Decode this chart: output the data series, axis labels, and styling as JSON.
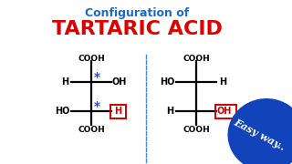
{
  "bg_color": "#ffffff",
  "title1": "Configuration of",
  "title1_color": "#1a6acc",
  "title2": "TARTARIC ACID",
  "title2_color": "#dd0000",
  "separator_color": "#4488ee",
  "asterisk_color": "#2255cc",
  "box_color": "#cc0000",
  "struct_line_color": "#000000",
  "easy_bg": "#1144bb",
  "easy_text": "Easy way..",
  "easy_text_color": "#ffffff",
  "fig_w": 3.2,
  "fig_h": 1.8,
  "dpi": 100
}
